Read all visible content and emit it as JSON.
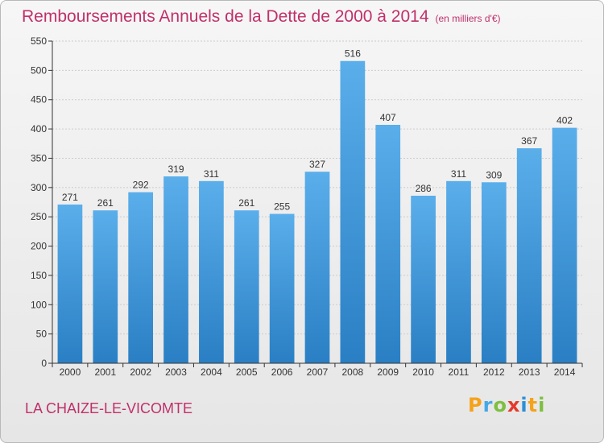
{
  "title": "Remboursements Annuels de la Dette de 2000 à 2014",
  "subtitle": "(en milliers d'€)",
  "city": "LA CHAIZE-LE-VICOMTE",
  "logo": {
    "letters": [
      "P",
      "r",
      "o",
      "x",
      "i",
      "t",
      "i"
    ],
    "colors": [
      "#f5a21b",
      "#45a8e6",
      "#7dbf3f",
      "#e5382c",
      "#2b8fd6",
      "#f5a21b",
      "#7dbf3f"
    ]
  },
  "colors": {
    "title": "#c0306a",
    "bar_top": "#5aaeea",
    "bar_bottom": "#2a7fc4",
    "grid": "#cccccc",
    "axis": "#333333"
  },
  "chart_data": {
    "type": "bar",
    "title": "Remboursements Annuels de la Dette de 2000 à 2014",
    "subtitle": "(en milliers d'€)",
    "xlabel": "",
    "ylabel": "",
    "categories": [
      "2000",
      "2001",
      "2002",
      "2003",
      "2004",
      "2005",
      "2006",
      "2007",
      "2008",
      "2009",
      "2010",
      "2011",
      "2012",
      "2013",
      "2014"
    ],
    "values": [
      271,
      261,
      292,
      319,
      311,
      261,
      255,
      327,
      516,
      407,
      286,
      311,
      309,
      367,
      402
    ],
    "ylim": [
      0,
      550
    ],
    "yticks": [
      0,
      50,
      100,
      150,
      200,
      250,
      300,
      350,
      400,
      450,
      500,
      550
    ],
    "grid": true,
    "legend": "none"
  }
}
